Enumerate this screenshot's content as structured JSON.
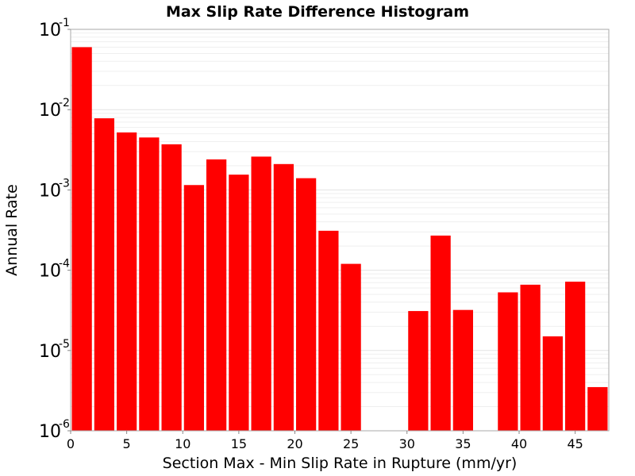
{
  "chart_data": {
    "type": "bar",
    "title": "Max Slip Rate Difference Histogram",
    "xlabel": "Section Max - Min Slip Rate in Rupture (mm/yr)",
    "ylabel": "Annual Rate",
    "yscale": "log",
    "xlim": [
      0,
      48
    ],
    "ylim": [
      1e-06,
      0.1
    ],
    "grid": true,
    "bar_color": "#ff0000",
    "bin_width": 2,
    "x": [
      1,
      3,
      5,
      7,
      9,
      11,
      13,
      15,
      17,
      19,
      21,
      23,
      25,
      27,
      29,
      31,
      33,
      35,
      37,
      39,
      41,
      43,
      45,
      47
    ],
    "values": [
      0.06,
      0.0078,
      0.0052,
      0.0045,
      0.0037,
      0.00115,
      0.0024,
      0.00155,
      0.0026,
      0.0021,
      0.0014,
      0.00031,
      0.00012,
      null,
      null,
      3.1e-05,
      0.00027,
      3.2e-05,
      null,
      5.3e-05,
      6.6e-05,
      1.5e-05,
      7.2e-05,
      3.5e-06
    ],
    "x_ticks": [
      "0",
      "5",
      "10",
      "15",
      "20",
      "25",
      "30",
      "35",
      "40",
      "45"
    ],
    "y_ticks": [
      {
        "base": "10",
        "exp": "-6"
      },
      {
        "base": "10",
        "exp": "-5"
      },
      {
        "base": "10",
        "exp": "-4"
      },
      {
        "base": "10",
        "exp": "-3"
      },
      {
        "base": "10",
        "exp": "-2"
      },
      {
        "base": "10",
        "exp": "-1"
      }
    ]
  }
}
